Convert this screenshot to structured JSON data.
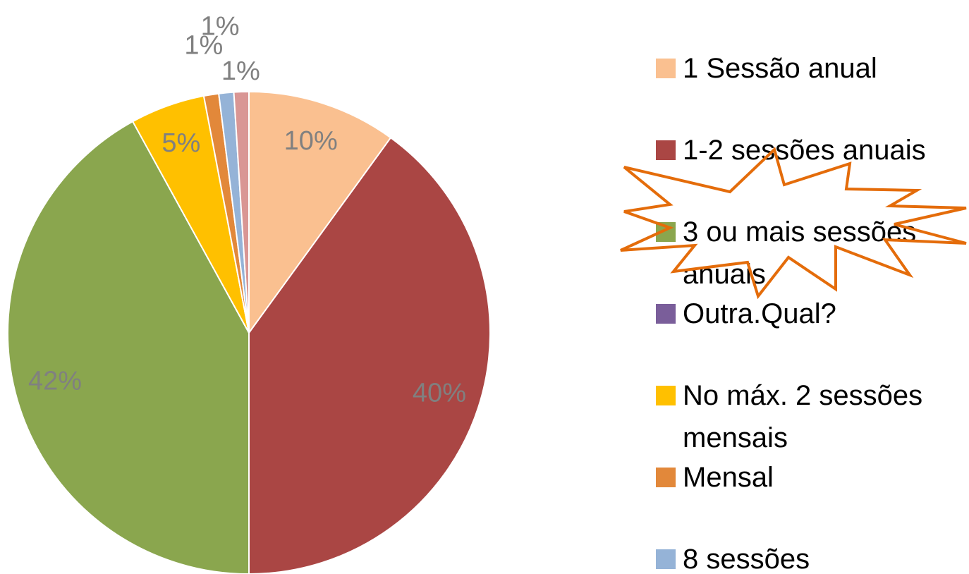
{
  "chart_data": {
    "type": "pie",
    "categories": [
      "1 Sessão anual",
      "1-2 sessões anuais",
      "3 ou mais sessões anuais",
      "Outra.Qual?",
      "No máx. 2 sessões mensais",
      "Mensal",
      "8 sessões",
      null
    ],
    "values": [
      10,
      40,
      42,
      0,
      5,
      1,
      1,
      1
    ],
    "value_labels": [
      "10%",
      "40%",
      "42%",
      null,
      "5%",
      "1%",
      "1%",
      "1%"
    ],
    "colors": [
      "#fac090",
      "#aa4644",
      "#8aa64e",
      "#7a5e9a",
      "#ffc000",
      "#e2883a",
      "#95b3d7",
      "#d99694"
    ],
    "legend": "right"
  }
}
